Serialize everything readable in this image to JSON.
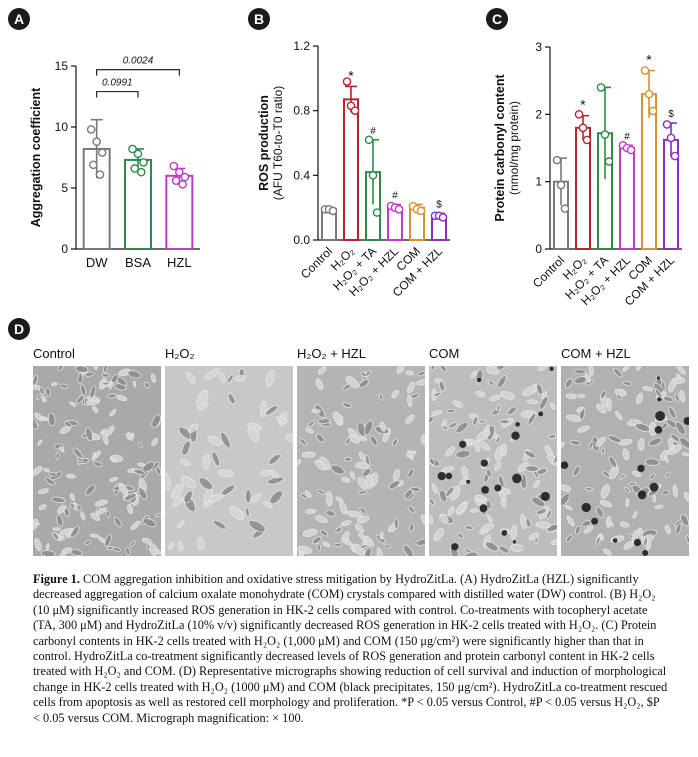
{
  "panels": {
    "a": {
      "badge": "A",
      "chart_data": {
        "type": "bar",
        "ylabel": "Aggregation coefficient",
        "ylim": [
          0,
          15
        ],
        "yticks": [
          0,
          5,
          10,
          15
        ],
        "categories": [
          "DW",
          "BSA",
          "HZL"
        ],
        "values": [
          8.2,
          7.3,
          6.0
        ],
        "errors": [
          2.4,
          0.9,
          0.6
        ],
        "points": [
          [
            9.8,
            8.8,
            7.9,
            6.9,
            6.1
          ],
          [
            8.2,
            7.8,
            7.1,
            6.6,
            6.3
          ],
          [
            6.8,
            6.3,
            5.9,
            5.6,
            5.3
          ]
        ],
        "colors": [
          "#7a7a7a",
          "#2f8a4a",
          "#c23ac9"
        ],
        "comparisons": [
          {
            "from": 0,
            "to": 1,
            "label": "0.0991",
            "y": 12.9
          },
          {
            "from": 0,
            "to": 2,
            "label": "0.0024",
            "y": 14.7
          }
        ]
      }
    },
    "b": {
      "badge": "B",
      "chart_data": {
        "type": "bar",
        "ylabel": "ROS production",
        "ylabel2": "(AFU T60-to-T0 ratio)",
        "ylim": [
          0,
          1.2
        ],
        "yticks": [
          "0.0",
          "0.4",
          "0.8",
          "1.2"
        ],
        "categories": [
          "Control",
          "H₂O₂",
          "H₂O₂ + TA",
          "H₂O₂ + HZL",
          "COM",
          "COM + HZL"
        ],
        "values": [
          0.19,
          0.87,
          0.42,
          0.2,
          0.2,
          0.15
        ],
        "errors": [
          0.01,
          0.08,
          0.2,
          0.02,
          0.02,
          0.015
        ],
        "points": [
          [
            0.19,
            0.19,
            0.18
          ],
          [
            0.98,
            0.83,
            0.8
          ],
          [
            0.62,
            0.4,
            0.17
          ],
          [
            0.21,
            0.2,
            0.19
          ],
          [
            0.21,
            0.19,
            0.18
          ],
          [
            0.15,
            0.15,
            0.14
          ]
        ],
        "colors": [
          "#7a7a7a",
          "#b5262b",
          "#2f8a4a",
          "#c23ac9",
          "#d9932e",
          "#8a2fbf"
        ],
        "marks": [
          "",
          "*",
          "#",
          "#",
          "",
          "$"
        ]
      }
    },
    "c": {
      "badge": "C",
      "chart_data": {
        "type": "bar",
        "ylabel": "Protein carbonyl content",
        "ylabel2": "(nmol/mg protein)",
        "ylim": [
          0,
          3
        ],
        "yticks": [
          0,
          1,
          2,
          3
        ],
        "categories": [
          "Control",
          "H₂O₂",
          "H₂O₂ + TA",
          "H₂O₂ + HZL",
          "COM",
          "COM + HZL"
        ],
        "values": [
          1.0,
          1.8,
          1.72,
          1.5,
          2.3,
          1.62
        ],
        "errors": [
          0.35,
          0.18,
          0.68,
          0.04,
          0.35,
          0.25
        ],
        "points": [
          [
            1.32,
            0.95,
            0.6
          ],
          [
            2.0,
            1.8,
            1.62
          ],
          [
            2.4,
            1.7,
            1.3
          ],
          [
            1.54,
            1.5,
            1.47
          ],
          [
            2.65,
            2.3,
            2.05
          ],
          [
            1.85,
            1.65,
            1.38
          ]
        ],
        "colors": [
          "#7a7a7a",
          "#b5262b",
          "#2f8a4a",
          "#c23ac9",
          "#d9932e",
          "#8a2fbf"
        ],
        "marks": [
          "",
          "*",
          "",
          "#",
          "*",
          "$"
        ]
      }
    },
    "d": {
      "badge": "D",
      "labels": [
        "Control",
        "H₂O₂",
        "H₂O₂ + HZL",
        "COM",
        "COM + HZL"
      ]
    }
  },
  "caption": {
    "title": "Figure 1.",
    "text": "COM aggregation inhibition and oxidative stress mitigation by HydroZitLa. (A) HydroZitLa (HZL) significantly decreased aggregation of calcium oxalate monohydrate (COM) crystals compared with distilled water (DW) control. (B) H₂O₂ (10 μM) significantly increased ROS generation in HK-2 cells compared with control. Co-treatments with tocopheryl acetate (TA, 300 μM) and HydroZitLa (10% v/v) significantly decreased ROS generation in HK-2 cells treated with H₂O₂. (C) Protein carbonyl contents in HK-2 cells treated with H₂O₂ (1,000 μM) and COM (150 μg/cm²) were significantly higher than that in control. HydroZitLa co-treatment significantly decreased levels of ROS generation and protein carbonyl content in HK-2 cells treated with H₂O₂ and COM. (D) Representative micrographs showing reduction of cell survival and induction of morphological change in HK-2 cells treated with H₂O₂ (1000 μM) and COM (black precipitates, 150 μg/cm²). HydroZitLa co-treatment rescued cells from apoptosis as well as restored cell morphology and proliferation. *P < 0.05 versus Control, #P < 0.05 versus H₂O₂, $P < 0.05 versus COM. Micrograph magnification: × 100."
  }
}
